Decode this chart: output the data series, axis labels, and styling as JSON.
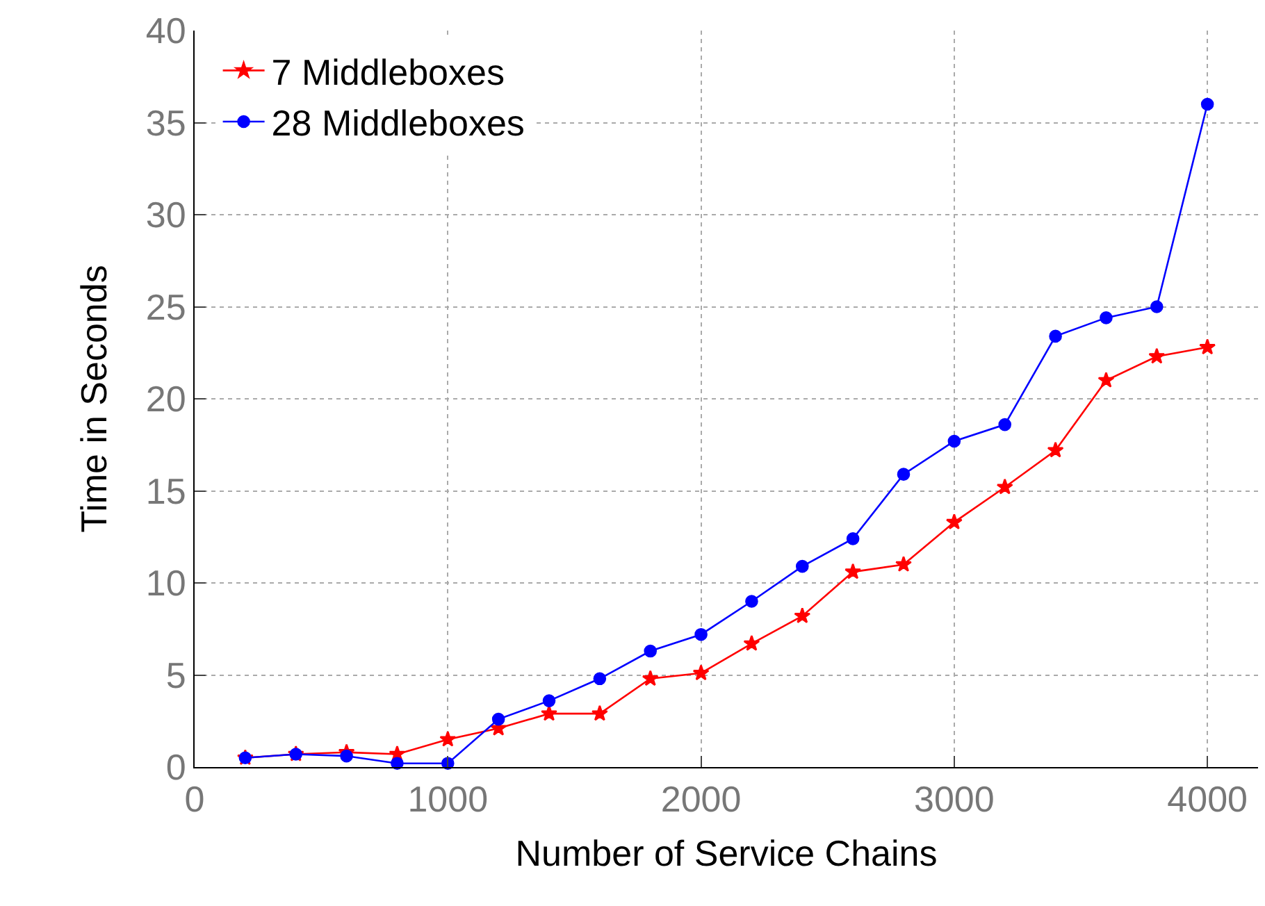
{
  "chart_data": {
    "type": "line",
    "xlabel": "Number of Service Chains",
    "ylabel": "Time in Seconds",
    "x": [
      200,
      400,
      600,
      800,
      1000,
      1200,
      1400,
      1600,
      1800,
      2000,
      2200,
      2400,
      2600,
      2800,
      3000,
      3200,
      3400,
      3600,
      3800,
      4000
    ],
    "series": [
      {
        "name": "7 Middleboxes",
        "color": "#ff0000",
        "marker": "star",
        "values": [
          0.5,
          0.7,
          0.8,
          0.7,
          1.5,
          2.1,
          2.9,
          2.9,
          4.8,
          5.1,
          6.7,
          8.2,
          10.6,
          11.0,
          13.3,
          15.2,
          17.2,
          21.0,
          22.3,
          22.8
        ]
      },
      {
        "name": "28 Middleboxes",
        "color": "#0000ff",
        "marker": "circle",
        "values": [
          0.5,
          0.7,
          0.6,
          0.2,
          0.2,
          2.6,
          3.6,
          4.8,
          6.3,
          7.2,
          9.0,
          10.9,
          12.4,
          15.9,
          17.7,
          18.6,
          23.4,
          24.4,
          25.0,
          36.0
        ]
      }
    ],
    "xlim": [
      0,
      4200
    ],
    "xticks": [
      0,
      1000,
      2000,
      3000,
      4000
    ],
    "ylim": [
      0,
      40
    ],
    "yticks": [
      0,
      5,
      10,
      15,
      20,
      25,
      30,
      35,
      40
    ],
    "grid": true,
    "legend": "top left",
    "line_style": "solid"
  }
}
